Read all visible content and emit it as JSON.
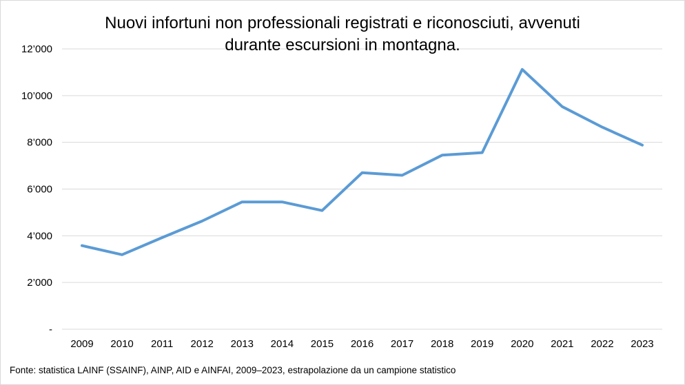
{
  "chart_data": {
    "type": "line",
    "title": "Nuovi infortuni non professionali registrati e riconosciuti, avvenuti durante escursioni in montagna.",
    "title_lines": [
      "Nuovi infortuni non professionali registrati e riconosciuti, avvenuti",
      "durante escursioni in montagna."
    ],
    "x": [
      "2009",
      "2010",
      "2011",
      "2012",
      "2013",
      "2014",
      "2015",
      "2016",
      "2017",
      "2018",
      "2019",
      "2020",
      "2021",
      "2022",
      "2023"
    ],
    "series": [
      {
        "values": [
          3580,
          3190,
          3920,
          4630,
          5450,
          5450,
          5080,
          6700,
          6590,
          7450,
          7560,
          11120,
          9530,
          8650,
          7880
        ]
      }
    ],
    "ylim": [
      0,
      12000
    ],
    "yticks": [
      0,
      2000,
      4000,
      6000,
      8000,
      10000,
      12000
    ],
    "ytick_labels": [
      "-",
      "2’000",
      "4’000",
      "6’000",
      "8’000",
      "10’000",
      "12’000"
    ],
    "grid": true,
    "line_color": "#5b9bd5",
    "grid_color": "#d9d9d9",
    "xlabel": "",
    "ylabel": ""
  },
  "source": "Fonte: statistica LAINF (SSAINF), AINP, AID e AINFAI, 2009–2023, estrapolazione da un campione statistico"
}
